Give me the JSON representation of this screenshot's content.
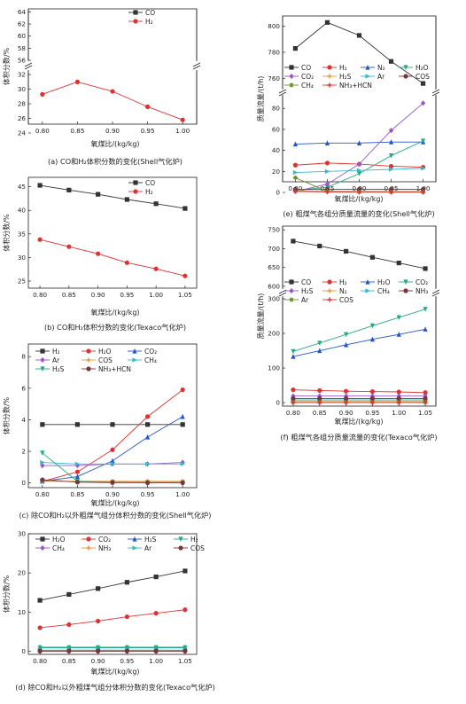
{
  "chart_data": [
    {
      "id": "a",
      "type": "line",
      "caption": "(a) CO和H₂体积分数的变化(Shell气化炉)",
      "xlabel": "氧煤比/(kg/kg)",
      "ylabel": "体积分数/%",
      "x": [
        0.8,
        0.85,
        0.9,
        0.95,
        1.0
      ],
      "xticks": [
        "0.80",
        "0.85",
        "0.90",
        "0.95",
        "1.00"
      ],
      "xlim": [
        0.78,
        1.02
      ],
      "broken_y": true,
      "ylim_upper": [
        56,
        64.5
      ],
      "ylim_lower": [
        24,
        32.5
      ],
      "yticks_upper": [
        "56",
        "58",
        "60",
        "62",
        "64"
      ],
      "yticks_lower": [
        "24",
        "26",
        "28",
        "30",
        "32"
      ],
      "series": [
        {
          "name": "CO",
          "color": "#333333",
          "marker": "square",
          "values": [
            62.4,
            61.6,
            60.4,
            58.8,
            57.3
          ]
        },
        {
          "name": "H₂",
          "color": "#e03030",
          "marker": "circle",
          "values": [
            29.3,
            31.0,
            29.7,
            27.6,
            25.8
          ]
        }
      ]
    },
    {
      "id": "b",
      "type": "line",
      "caption": "(b) CO和H₂体积分数的变化(Texaco气化炉)",
      "xlabel": "氧煤比/(kg/kg)",
      "ylabel": "体积分数/%",
      "x": [
        0.8,
        0.85,
        0.9,
        0.95,
        1.0,
        1.05
      ],
      "xticks": [
        "0.80",
        "0.85",
        "0.90",
        "0.95",
        "1.00",
        "1.05"
      ],
      "xlim": [
        0.78,
        1.07
      ],
      "ylim": [
        23.5,
        47
      ],
      "yticks": [
        "25",
        "30",
        "35",
        "40",
        "45"
      ],
      "series": [
        {
          "name": "CO",
          "color": "#333333",
          "marker": "square",
          "values": [
            45.3,
            44.3,
            43.4,
            42.3,
            41.4,
            40.4
          ]
        },
        {
          "name": "H₂",
          "color": "#e03030",
          "marker": "circle",
          "values": [
            33.8,
            32.3,
            30.8,
            28.9,
            27.6,
            26.1
          ]
        }
      ]
    },
    {
      "id": "c",
      "type": "line",
      "caption": "(c) 除CO和H₂以外粗煤气组分体积分数的变化(Shell气化炉)",
      "xlabel": "氧煤比/(kg/kg)",
      "ylabel": "体积分数/%",
      "x": [
        0.8,
        0.85,
        0.9,
        0.95,
        1.0
      ],
      "xticks": [
        "0.80",
        "0.85",
        "0.90",
        "0.95",
        "1.00"
      ],
      "xlim": [
        0.78,
        1.02
      ],
      "ylim": [
        -0.3,
        8.8
      ],
      "yticks": [
        "0",
        "2",
        "4",
        "6",
        "8"
      ],
      "series": [
        {
          "name": "H₂",
          "color": "#333333",
          "marker": "square",
          "values": [
            3.7,
            3.7,
            3.7,
            3.7,
            3.7
          ]
        },
        {
          "name": "H₂O",
          "color": "#e03030",
          "marker": "circle",
          "values": [
            0.1,
            0.7,
            2.1,
            4.2,
            5.9
          ]
        },
        {
          "name": "CO₂",
          "color": "#2255cc",
          "marker": "triangle",
          "values": [
            0.1,
            0.4,
            1.4,
            2.9,
            4.2
          ]
        },
        {
          "name": "Ar",
          "color": "#9955cc",
          "marker": "diamond",
          "values": [
            1.1,
            1.1,
            1.2,
            1.2,
            1.3
          ]
        },
        {
          "name": "COS",
          "color": "#e69a2e",
          "marker": "plus",
          "values": [
            0.1,
            0.1,
            0.1,
            0.1,
            0.1
          ]
        },
        {
          "name": "CH₄",
          "color": "#33bbcc",
          "marker": "arrow",
          "values": [
            1.3,
            1.2,
            1.2,
            1.2,
            1.2
          ]
        },
        {
          "name": "H₂S",
          "color": "#22aa88",
          "marker": "triangle-down",
          "values": [
            1.9,
            0.1,
            0.05,
            0.03,
            0.03
          ]
        },
        {
          "name": "NH₃+HCN",
          "color": "#7a3535",
          "marker": "circle",
          "values": [
            0.2,
            0.05,
            0.02,
            0.01,
            0.01
          ]
        }
      ]
    },
    {
      "id": "d",
      "type": "line",
      "caption": "(d) 除CO和H₂以外粗煤气组分体积分数的变化(Texaco气化炉)",
      "xlabel": "氧煤比/(kg/kg)",
      "ylabel": "体积分数/%",
      "x": [
        0.8,
        0.85,
        0.9,
        0.95,
        1.0,
        1.05
      ],
      "xticks": [
        "0.80",
        "0.85",
        "0.90",
        "0.95",
        "1.00",
        "1.05"
      ],
      "xlim": [
        0.78,
        1.07
      ],
      "ylim": [
        -0.8,
        30
      ],
      "yticks": [
        "0",
        "10",
        "20",
        "30"
      ],
      "series": [
        {
          "name": "H₂O",
          "color": "#333333",
          "marker": "square",
          "values": [
            13.0,
            14.5,
            16.0,
            17.6,
            19.0,
            20.5
          ]
        },
        {
          "name": "CO₂",
          "color": "#e03030",
          "marker": "circle",
          "values": [
            6.0,
            6.8,
            7.7,
            8.8,
            9.7,
            10.6
          ]
        },
        {
          "name": "H₂S",
          "color": "#2255cc",
          "marker": "triangle",
          "values": [
            1.0,
            1.0,
            1.0,
            1.0,
            1.0,
            1.0
          ]
        },
        {
          "name": "H₂",
          "color": "#22aa88",
          "marker": "triangle-down",
          "values": [
            0.9,
            0.9,
            0.9,
            0.9,
            0.9,
            0.9
          ]
        },
        {
          "name": "CH₄",
          "color": "#9955cc",
          "marker": "diamond",
          "values": [
            0.1,
            0.1,
            0.1,
            0.1,
            0.1,
            0.1
          ]
        },
        {
          "name": "NH₃",
          "color": "#e69a2e",
          "marker": "plus",
          "values": [
            0.05,
            0.05,
            0.05,
            0.05,
            0.05,
            0.05
          ]
        },
        {
          "name": "Ar",
          "color": "#33bbcc",
          "marker": "arrow",
          "values": [
            0.3,
            0.3,
            0.3,
            0.3,
            0.3,
            0.3
          ]
        },
        {
          "name": "COS",
          "color": "#7a3535",
          "marker": "circle",
          "values": [
            0.02,
            0.02,
            0.02,
            0.02,
            0.02,
            0.02
          ]
        }
      ]
    },
    {
      "id": "e",
      "type": "line",
      "caption": "(e) 粗煤气各组分质量流量的变化(Shell气化炉)",
      "xlabel": "氧煤比/(kg/kg)",
      "ylabel": "质量流量/(t/h)",
      "x": [
        0.8,
        0.85,
        0.9,
        0.95,
        1.0
      ],
      "xticks": [
        "0.80",
        "0.85",
        "0.90",
        "0.95",
        "1.00"
      ],
      "xlim": [
        0.78,
        1.02
      ],
      "broken_y": true,
      "ylim_upper": [
        752,
        808
      ],
      "ylim_lower": [
        -5,
        92
      ],
      "yticks_upper": [
        "760",
        "780",
        "800"
      ],
      "yticks_lower": [
        "0",
        "20",
        "40",
        "60",
        "80"
      ],
      "series": [
        {
          "name": "CO",
          "color": "#333333",
          "marker": "square",
          "axis": "upper",
          "values": [
            783,
            803,
            793,
            773,
            756
          ]
        },
        {
          "name": "H₂",
          "color": "#e03030",
          "marker": "circle",
          "values": [
            26,
            28,
            27,
            25,
            24
          ]
        },
        {
          "name": "N₂",
          "color": "#2255cc",
          "marker": "triangle",
          "values": [
            46,
            47,
            47,
            48,
            48
          ]
        },
        {
          "name": "H₂O",
          "color": "#22aa88",
          "marker": "triangle-down",
          "values": [
            2,
            5,
            18,
            35,
            49
          ]
        },
        {
          "name": "CO₂",
          "color": "#9955cc",
          "marker": "diamond",
          "values": [
            1,
            8,
            27,
            59,
            85
          ]
        },
        {
          "name": "H₂S",
          "color": "#e69a2e",
          "marker": "plus",
          "values": [
            2,
            1,
            1,
            1,
            1
          ]
        },
        {
          "name": "Ar",
          "color": "#33bbcc",
          "marker": "arrow",
          "values": [
            19,
            20,
            21,
            22,
            23
          ]
        },
        {
          "name": "COS",
          "color": "#7a3535",
          "marker": "circle",
          "values": [
            3,
            3,
            3,
            3,
            3
          ]
        },
        {
          "name": "CH₄",
          "color": "#6b8e23",
          "marker": "star",
          "values": [
            14,
            1,
            0.5,
            0.3,
            0.2
          ]
        },
        {
          "name": "NH₃+HCN",
          "color": "#e03030",
          "marker": "plus",
          "values": [
            1,
            0.5,
            0.3,
            0.2,
            0.2
          ]
        }
      ]
    },
    {
      "id": "f",
      "type": "line",
      "caption": "(f) 粗煤气各组分质量流量的变化(Texaco气化炉)",
      "xlabel": "氧煤比/(kg/kg)",
      "ylabel": "质量流量/(t/h)",
      "x": [
        0.8,
        0.85,
        0.9,
        0.95,
        1.0,
        1.05
      ],
      "xticks": [
        "0.80",
        "0.85",
        "0.90",
        "0.95",
        "1.00",
        "1.05"
      ],
      "xlim": [
        0.78,
        1.07
      ],
      "broken_y": true,
      "ylim_upper": [
        595,
        760
      ],
      "ylim_lower": [
        -10,
        305
      ],
      "yticks_upper": [
        "600",
        "650",
        "700",
        "750"
      ],
      "yticks_lower": [
        "0",
        "100",
        "200",
        "300"
      ],
      "series": [
        {
          "name": "CO",
          "color": "#333333",
          "marker": "square",
          "axis": "upper",
          "values": [
            720,
            707,
            693,
            677,
            662,
            647
          ]
        },
        {
          "name": "H₂",
          "color": "#e03030",
          "marker": "circle",
          "values": [
            37,
            35,
            33,
            32,
            31,
            29
          ]
        },
        {
          "name": "H₂O",
          "color": "#2255cc",
          "marker": "triangle",
          "values": [
            133,
            150,
            167,
            183,
            197,
            212
          ]
        },
        {
          "name": "CO₂",
          "color": "#22aa88",
          "marker": "triangle-down",
          "values": [
            148,
            172,
            197,
            222,
            246,
            270
          ]
        },
        {
          "name": "H₂S",
          "color": "#9955cc",
          "marker": "diamond",
          "values": [
            19,
            19,
            19,
            19,
            19,
            19
          ]
        },
        {
          "name": "N₂",
          "color": "#e69a2e",
          "marker": "plus",
          "values": [
            5,
            5,
            5,
            5,
            5,
            5
          ]
        },
        {
          "name": "CH₄",
          "color": "#33bbcc",
          "marker": "arrow",
          "values": [
            8,
            8,
            8,
            8,
            8,
            8
          ]
        },
        {
          "name": "NH₃",
          "color": "#7a3535",
          "marker": "circle",
          "values": [
            12,
            12,
            12,
            12,
            12,
            12
          ]
        },
        {
          "name": "Ar",
          "color": "#6b8e23",
          "marker": "star",
          "values": [
            1,
            1,
            1,
            1,
            1,
            1
          ]
        },
        {
          "name": "COS",
          "color": "#e03030",
          "marker": "plus",
          "values": [
            0.5,
            0.5,
            0.5,
            0.5,
            0.5,
            0.5
          ]
        }
      ]
    }
  ]
}
